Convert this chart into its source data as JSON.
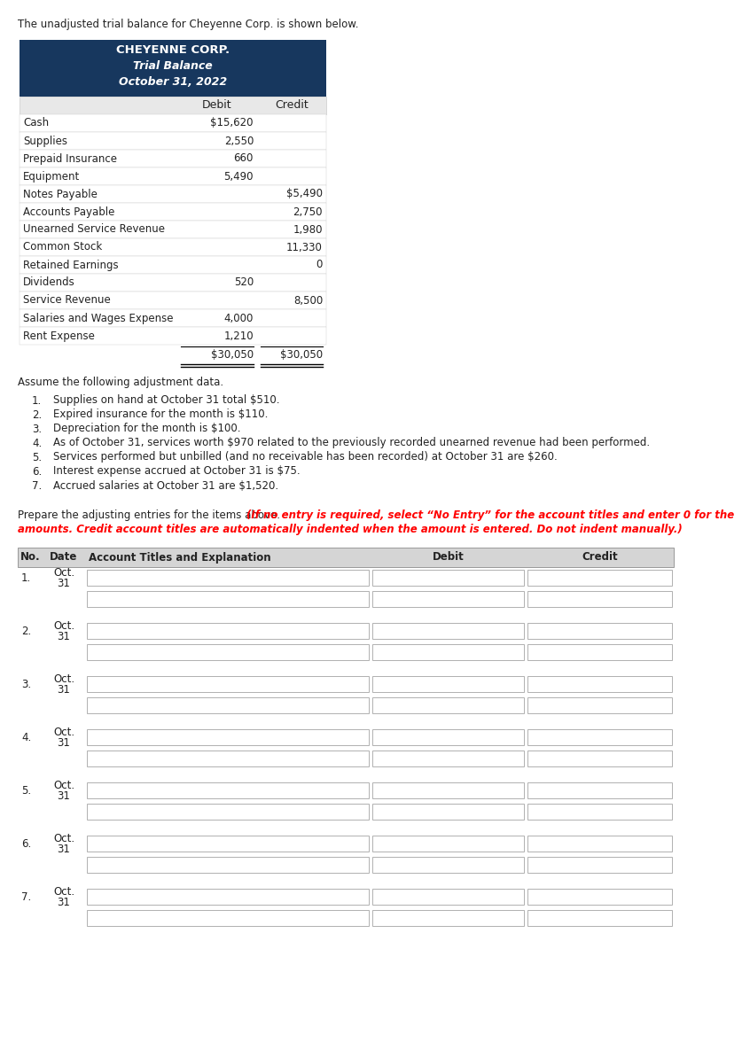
{
  "intro_text": "The unadjusted trial balance for Cheyenne Corp. is shown below.",
  "company_name": "CHEYENNE CORP.",
  "table_title1": "Trial Balance",
  "table_title2": "October 31, 2022",
  "header_bg": "#17375e",
  "header_text_color": "#ffffff",
  "col_header_bg": "#e8e8e8",
  "trial_balance_rows": [
    {
      "account": "Cash",
      "debit": "$15,620",
      "credit": ""
    },
    {
      "account": "Supplies",
      "debit": "2,550",
      "credit": ""
    },
    {
      "account": "Prepaid Insurance",
      "debit": "660",
      "credit": ""
    },
    {
      "account": "Equipment",
      "debit": "5,490",
      "credit": ""
    },
    {
      "account": "Notes Payable",
      "debit": "",
      "credit": "$5,490"
    },
    {
      "account": "Accounts Payable",
      "debit": "",
      "credit": "2,750"
    },
    {
      "account": "Unearned Service Revenue",
      "debit": "",
      "credit": "1,980"
    },
    {
      "account": "Common Stock",
      "debit": "",
      "credit": "11,330"
    },
    {
      "account": "Retained Earnings",
      "debit": "",
      "credit": "0"
    },
    {
      "account": "Dividends",
      "debit": "520",
      "credit": ""
    },
    {
      "account": "Service Revenue",
      "debit": "",
      "credit": "8,500"
    },
    {
      "account": "Salaries and Wages Expense",
      "debit": "4,000",
      "credit": ""
    },
    {
      "account": "Rent Expense",
      "debit": "1,210",
      "credit": ""
    }
  ],
  "total_debit": "$30,050",
  "total_credit": "$30,050",
  "adjustment_header": "Assume the following adjustment data.",
  "adjustments": [
    "Supplies on hand at October 31 total $510.",
    "Expired insurance for the month is $110.",
    "Depreciation for the month is $100.",
    "As of October 31, services worth $970 related to the previously recorded unearned revenue had been performed.",
    "Services performed but unbilled (and no receivable has been recorded) at October 31 are $260.",
    "Interest expense accrued at October 31 is $75.",
    "Accrued salaries at October 31 are $1,520."
  ],
  "prepare_text_normal": "Prepare the adjusting entries for the items above. ",
  "prepare_text_italic_red": "(If no entry is required, select “No Entry” for the account titles and enter 0 for the\namounts. Credit account titles are automatically indented when the amount is entered. Do not indent manually.)",
  "background_color": "#ffffff"
}
